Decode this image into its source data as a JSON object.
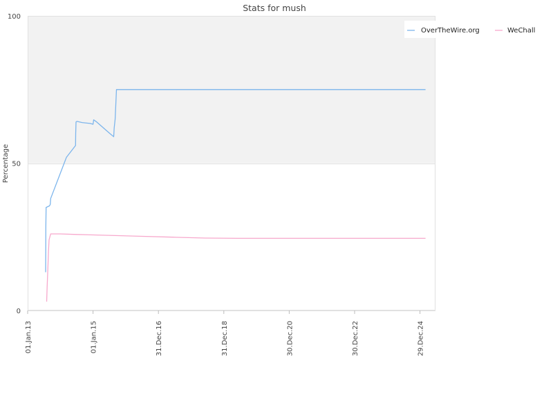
{
  "chart_data": {
    "type": "line",
    "title": "Stats for mush",
    "xlabel": "",
    "ylabel": "Percentage",
    "ylim": [
      0,
      100
    ],
    "yticks": [
      0,
      50,
      100
    ],
    "xlim": [
      "2013-01-01",
      "2025-06-20"
    ],
    "xticks": [
      {
        "value": "2013-01-01",
        "label": "01.Jan.13"
      },
      {
        "value": "2015-01-01",
        "label": "01.Jan.15"
      },
      {
        "value": "2016-12-31",
        "label": "31.Dec.16"
      },
      {
        "value": "2018-12-31",
        "label": "31.Dec.18"
      },
      {
        "value": "2020-12-30",
        "label": "30.Dec.20"
      },
      {
        "value": "2022-12-30",
        "label": "30.Dec.22"
      },
      {
        "value": "2024-12-29",
        "label": "29.Dec.24"
      }
    ],
    "grid": true,
    "upper_band": [
      50,
      100
    ],
    "legend_position": "top-right",
    "series": [
      {
        "name": "OverTheWire.org",
        "color": "#7cb5ec",
        "points": [
          [
            "2013-07-21",
            13
          ],
          [
            "2013-07-22",
            20
          ],
          [
            "2013-07-23",
            28
          ],
          [
            "2013-07-26",
            35
          ],
          [
            "2013-09-01",
            35.5
          ],
          [
            "2013-09-10",
            36
          ],
          [
            "2013-09-15",
            38
          ],
          [
            "2014-03-10",
            52
          ],
          [
            "2014-06-20",
            56
          ],
          [
            "2014-06-21",
            60
          ],
          [
            "2014-06-25",
            64
          ],
          [
            "2014-07-05",
            64.2
          ],
          [
            "2014-09-01",
            63.8
          ],
          [
            "2014-12-01",
            63.5
          ],
          [
            "2015-01-01",
            63.2
          ],
          [
            "2015-01-08",
            64.7
          ],
          [
            "2015-02-10",
            64
          ],
          [
            "2015-07-10",
            60
          ],
          [
            "2015-08-20",
            59
          ],
          [
            "2015-08-25",
            62
          ],
          [
            "2015-09-05",
            65
          ],
          [
            "2015-09-20",
            75
          ],
          [
            "2025-01-01",
            75
          ],
          [
            "2025-03-01",
            75
          ]
        ]
      },
      {
        "name": "WeChall",
        "color": "#f7a8cc",
        "points": [
          [
            "2013-08-01",
            3
          ],
          [
            "2013-08-07",
            8
          ],
          [
            "2013-08-14",
            14
          ],
          [
            "2013-08-21",
            20
          ],
          [
            "2013-08-28",
            24
          ],
          [
            "2013-09-15",
            26
          ],
          [
            "2014-01-01",
            26
          ],
          [
            "2014-07-01",
            25.8
          ],
          [
            "2015-07-01",
            25.5
          ],
          [
            "2016-06-01",
            25.2
          ],
          [
            "2017-06-01",
            24.9
          ],
          [
            "2018-06-01",
            24.6
          ],
          [
            "2019-06-01",
            24.5
          ],
          [
            "2025-03-01",
            24.5
          ]
        ]
      }
    ]
  }
}
